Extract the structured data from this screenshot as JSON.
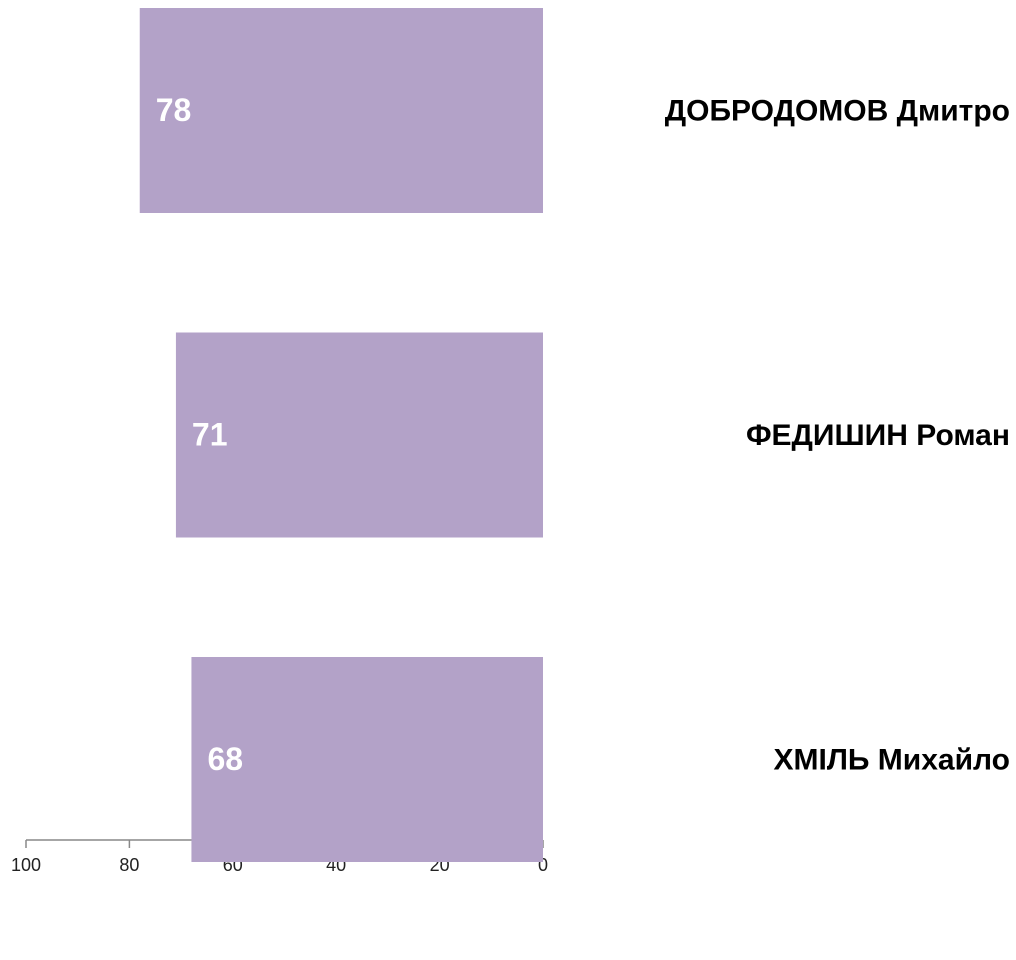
{
  "chart_data": {
    "type": "bar",
    "orientation": "horizontal",
    "categories": [
      "ДОБРОДОМОВ Дмитро",
      "ФЕДИШИН Роман",
      "ХМІЛЬ Михайло"
    ],
    "values": [
      78,
      71,
      68
    ],
    "color": "#b3a2c8",
    "xlim": [
      100,
      0
    ],
    "xticks": [
      100,
      80,
      60,
      40,
      20,
      0
    ],
    "grid": false
  }
}
